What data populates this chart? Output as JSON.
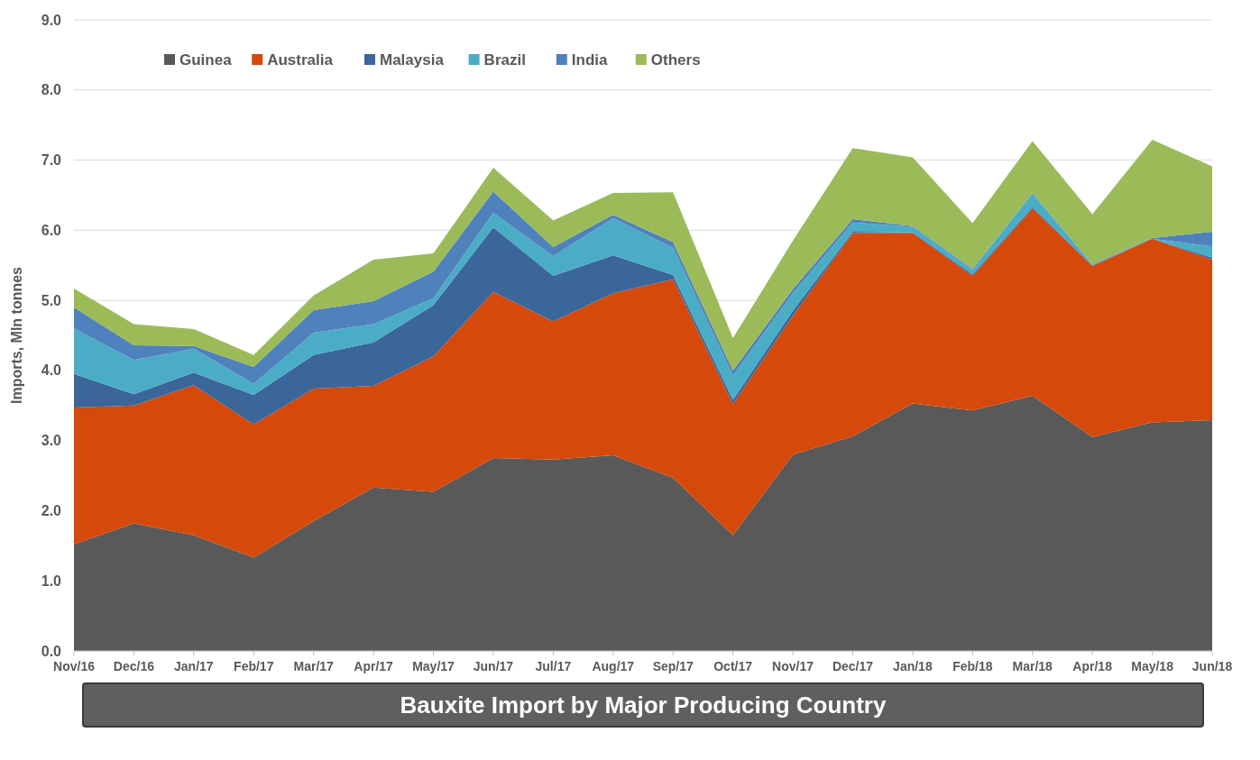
{
  "chart_data": {
    "type": "area",
    "stacked": true,
    "title": "Bauxite Import by Major Producing Country",
    "ylabel": "Imports, Mln tonnes",
    "categories": [
      "Nov/16",
      "Dec/16",
      "Jan/17",
      "Feb/17",
      "Mar/17",
      "Apr/17",
      "May/17",
      "Jun/17",
      "Jul/17",
      "Aug/17",
      "Sep/17",
      "Oct/17",
      "Nov/17",
      "Dec/17",
      "Jan/18",
      "Feb/18",
      "Mar/18",
      "Apr/18",
      "May/18",
      "Jun/18"
    ],
    "series": [
      {
        "name": "Guinea",
        "color": "#595959",
        "values": [
          1.52,
          1.82,
          1.65,
          1.33,
          1.85,
          2.33,
          2.27,
          2.75,
          2.73,
          2.79,
          2.47,
          1.65,
          2.8,
          3.06,
          3.53,
          3.43,
          3.64,
          3.05,
          3.26,
          3.29
        ]
      },
      {
        "name": "Australia",
        "color": "#d5490b",
        "values": [
          1.95,
          1.68,
          2.14,
          1.9,
          1.89,
          1.45,
          1.93,
          2.37,
          1.97,
          2.31,
          2.83,
          1.87,
          1.98,
          2.9,
          2.43,
          1.92,
          2.67,
          2.44,
          2.62,
          2.29
        ]
      },
      {
        "name": "Malaysia",
        "color": "#3a6699",
        "values": [
          0.48,
          0.16,
          0.18,
          0.42,
          0.48,
          0.62,
          0.73,
          0.92,
          0.65,
          0.54,
          0.06,
          0.06,
          0.07,
          0.02,
          0.01,
          0.02,
          0.02,
          0.01,
          0.0,
          0.03
        ]
      },
      {
        "name": "Brazil",
        "color": "#4bacc6",
        "values": [
          0.65,
          0.49,
          0.34,
          0.16,
          0.32,
          0.26,
          0.1,
          0.21,
          0.28,
          0.53,
          0.39,
          0.35,
          0.25,
          0.13,
          0.08,
          0.07,
          0.19,
          0.01,
          0.0,
          0.16
        ]
      },
      {
        "name": "India",
        "color": "#4f81bd",
        "values": [
          0.3,
          0.21,
          0.04,
          0.24,
          0.32,
          0.33,
          0.38,
          0.3,
          0.13,
          0.05,
          0.08,
          0.07,
          0.06,
          0.05,
          0.01,
          0.01,
          0.01,
          0.01,
          0.01,
          0.21
        ]
      },
      {
        "name": "Others",
        "color": "#9bbb59",
        "values": [
          0.27,
          0.3,
          0.24,
          0.17,
          0.21,
          0.59,
          0.26,
          0.34,
          0.38,
          0.31,
          0.71,
          0.46,
          0.69,
          1.01,
          0.98,
          0.65,
          0.74,
          0.71,
          1.4,
          0.93
        ]
      }
    ],
    "ylim": [
      0,
      9
    ],
    "yticks": [
      {
        "value": 0,
        "label": "0.0"
      },
      {
        "value": 1,
        "label": "1.0"
      },
      {
        "value": 2,
        "label": "2.0"
      },
      {
        "value": 3,
        "label": "3.0"
      },
      {
        "value": 4,
        "label": "4.0"
      },
      {
        "value": 5,
        "label": "5.0"
      },
      {
        "value": 6,
        "label": "6.0"
      },
      {
        "value": 7,
        "label": "7.0"
      },
      {
        "value": 8,
        "label": "8.0"
      },
      {
        "value": 9,
        "label": "9.0"
      }
    ],
    "grid": "y",
    "legend": "top left"
  }
}
